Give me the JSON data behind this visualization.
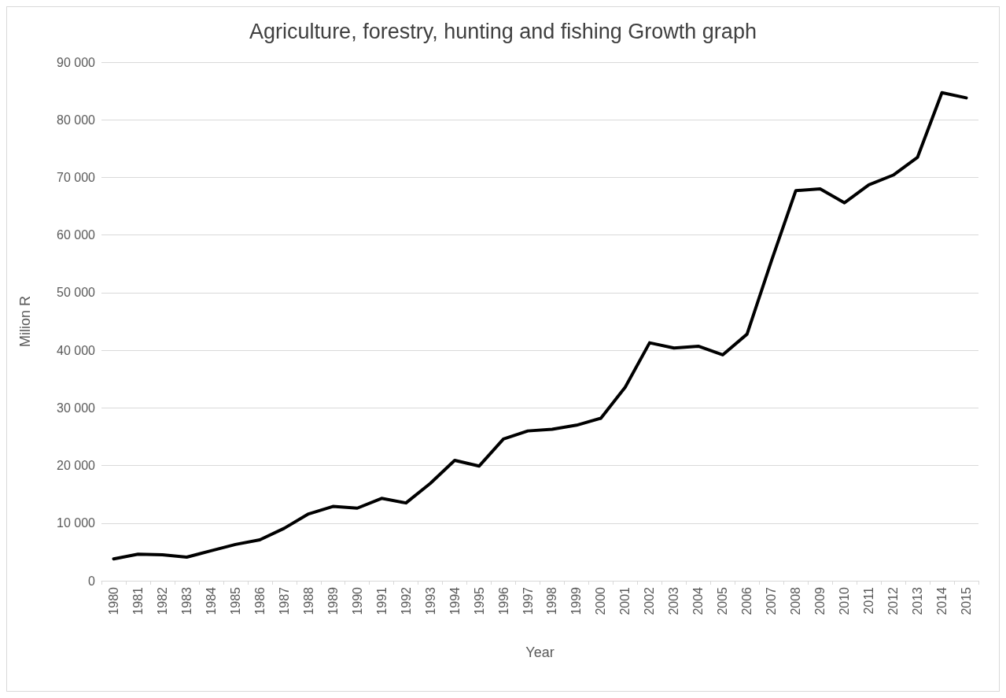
{
  "chart_data": {
    "type": "line",
    "title": "Agriculture, forestry, hunting and fishing Growth graph",
    "xlabel": "Year",
    "ylabel": "Milion R",
    "categories": [
      "1980",
      "1981",
      "1982",
      "1983",
      "1984",
      "1985",
      "1986",
      "1987",
      "1988",
      "1989",
      "1990",
      "1991",
      "1992",
      "1993",
      "1994",
      "1995",
      "1996",
      "1997",
      "1998",
      "1999",
      "2000",
      "2001",
      "2002",
      "2003",
      "2004",
      "2005",
      "2006",
      "2007",
      "2008",
      "2009",
      "2010",
      "2011",
      "2012",
      "2013",
      "2014",
      "2015"
    ],
    "series": [
      {
        "color": "#000000",
        "values": [
          3800,
          4600,
          4500,
          4100,
          5200,
          6300,
          7100,
          9100,
          11600,
          12900,
          12600,
          14300,
          13500,
          16900,
          20900,
          19900,
          24600,
          26000,
          26300,
          27000,
          28200,
          33600,
          41300,
          40400,
          40700,
          39200,
          42800,
          55500,
          67700,
          68000,
          65600,
          68700,
          70400,
          73500,
          84700,
          83800
        ]
      }
    ],
    "ylim": [
      0,
      90000
    ],
    "yticks": [
      0,
      {
        "value": 10000,
        "label": "10 000"
      },
      {
        "value": 20000,
        "label": "20 000"
      },
      {
        "value": 30000,
        "label": "30 000"
      },
      {
        "value": 40000,
        "label": "40 000"
      },
      {
        "value": 50000,
        "label": "50 000"
      },
      {
        "value": 60000,
        "label": "60 000"
      },
      {
        "value": 70000,
        "label": "70 000"
      },
      {
        "value": 80000,
        "label": "80 000"
      },
      {
        "value": 90000,
        "label": "90 000"
      }
    ],
    "grid": "y",
    "marker": "none",
    "line_style": "solid"
  }
}
